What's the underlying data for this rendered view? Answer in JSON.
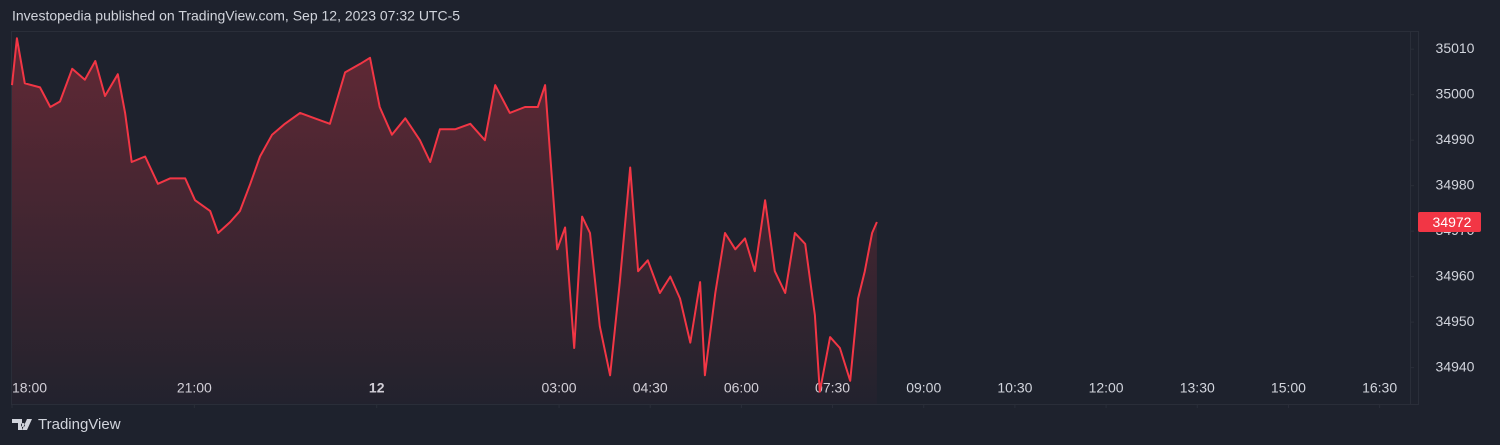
{
  "header": "Investopedia published on TradingView.com, Sep 12, 2023 07:32 UTC-5",
  "footer": "TradingView",
  "chart_data": {
    "type": "line",
    "color": "#f23645",
    "x": [
      0,
      0.08,
      0.21,
      0.46,
      0.63,
      0.79,
      0.99,
      1.2,
      1.37,
      1.53,
      1.74,
      1.86,
      1.97,
      2.19,
      2.4,
      2.6,
      2.85,
      3.01,
      3.26,
      3.39,
      3.59,
      3.75,
      3.92,
      4.08,
      4.28,
      4.49,
      4.74,
      4.98,
      5.23,
      5.48,
      5.73,
      5.89,
      6.05,
      6.25,
      6.47,
      6.71,
      6.88,
      7.04,
      7.29,
      7.54,
      7.78,
      7.95,
      8.19,
      8.44,
      8.65,
      8.77,
      8.85,
      8.97,
      9.1,
      9.25,
      9.38,
      9.51,
      9.67,
      9.84,
      10.0,
      10.17,
      10.3,
      10.46,
      10.66,
      10.83,
      10.99,
      11.16,
      11.32,
      11.4,
      11.57,
      11.73,
      11.9,
      12.06,
      12.22,
      12.39,
      12.55,
      12.72,
      12.88,
      13.05,
      13.21,
      13.29,
      13.46,
      13.62,
      13.79,
      13.92,
      14.03,
      14.15,
      14.23
    ],
    "values": [
      35002.1,
      35012.4,
      35002.5,
      35001.6,
      34997.3,
      34998.5,
      35005.7,
      35003.3,
      35007.4,
      34999.7,
      35004.5,
      34996.0,
      34985.2,
      34986.4,
      34980.4,
      34981.6,
      34981.6,
      34976.8,
      34974.4,
      34969.6,
      34972.0,
      34974.4,
      34980.4,
      34986.4,
      34991.2,
      34993.6,
      34996.0,
      34994.8,
      34993.6,
      35004.9,
      35006.8,
      35008.1,
      34997.3,
      34991.2,
      34994.8,
      34990.0,
      34985.2,
      34992.4,
      34992.4,
      34993.6,
      34990.0,
      35002.1,
      34996.0,
      34997.3,
      34997.3,
      35002.1,
      34987.6,
      34966.0,
      34970.8,
      34944.3,
      34973.2,
      34969.6,
      34949.1,
      34938.3,
      34958.8,
      34984.0,
      34961.2,
      34963.6,
      34956.4,
      34960.0,
      34955.2,
      34945.5,
      34958.8,
      34938.3,
      34956.4,
      34969.6,
      34966.0,
      34968.4,
      34961.2,
      34976.8,
      34961.2,
      34956.4,
      34969.6,
      34967.2,
      34951.5,
      34934.7,
      34946.7,
      34944.3,
      34937.1,
      34955.2,
      34961.2,
      34969.6,
      34972
    ],
    "last_price": 34972,
    "xlim": [
      0,
      23
    ],
    "ylim": [
      34932,
      35014
    ],
    "xticks": [
      {
        "value": 0,
        "label": "18:00"
      },
      {
        "value": 3,
        "label": "21:00"
      },
      {
        "value": 6,
        "label": "12"
      },
      {
        "value": 9,
        "label": "03:00"
      },
      {
        "value": 10.5,
        "label": "04:30"
      },
      {
        "value": 12,
        "label": "06:00"
      },
      {
        "value": 13.5,
        "label": "07:30"
      },
      {
        "value": 15,
        "label": "09:00"
      },
      {
        "value": 16.5,
        "label": "10:30"
      },
      {
        "value": 18,
        "label": "12:00"
      },
      {
        "value": 19.5,
        "label": "13:30"
      },
      {
        "value": 21,
        "label": "15:00"
      },
      {
        "value": 22.5,
        "label": "16:30"
      }
    ],
    "yticks": [
      34940,
      34950,
      34960,
      34970,
      34980,
      34990,
      35000,
      35010
    ]
  }
}
